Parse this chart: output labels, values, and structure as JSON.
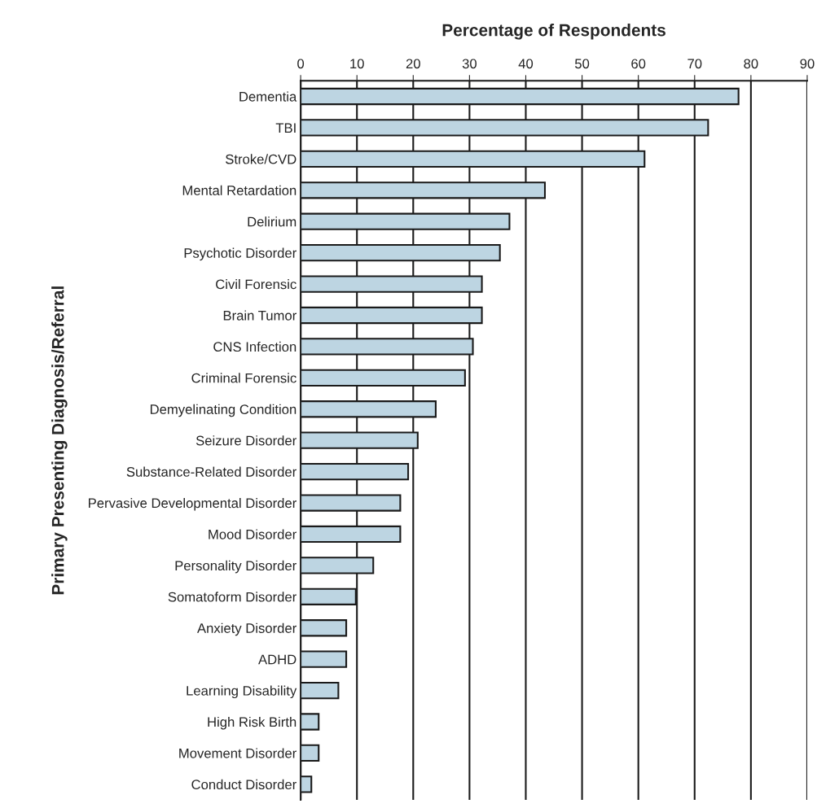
{
  "chart_data": {
    "type": "bar",
    "orientation": "horizontal",
    "xlabel": "Percentage of Respondents",
    "ylabel": "Primary Presenting Diagnosis/Referral",
    "categories": [
      "Dementia",
      "TBI",
      "Stroke/CVD",
      "Mental Retardation",
      "Delirium",
      "Psychotic Disorder",
      "Civil Forensic",
      "Brain Tumor",
      "CNS Infection",
      "Criminal Forensic",
      "Demyelinating Condition",
      "Seizure Disorder",
      "Substance-Related Disorder",
      "Pervasive Developmental Disorder",
      "Mood Disorder",
      "Personality Disorder",
      "Somatoform Disorder",
      "Anxiety Disorder",
      "ADHD",
      "Learning Disability",
      "High Risk Birth",
      "Movement Disorder",
      "Conduct Disorder"
    ],
    "values": [
      77.8,
      72.4,
      61.1,
      43.4,
      37.1,
      35.4,
      32.2,
      32.2,
      30.6,
      29.2,
      24.0,
      20.8,
      19.1,
      17.7,
      17.7,
      12.9,
      9.8,
      8.1,
      8.1,
      6.7,
      3.2,
      3.2,
      1.9
    ],
    "color": "#bdd5e2",
    "xlim": [
      0,
      90
    ],
    "xticks": [
      0,
      10,
      20,
      30,
      40,
      50,
      60,
      70,
      80,
      90
    ],
    "grid": "x"
  }
}
